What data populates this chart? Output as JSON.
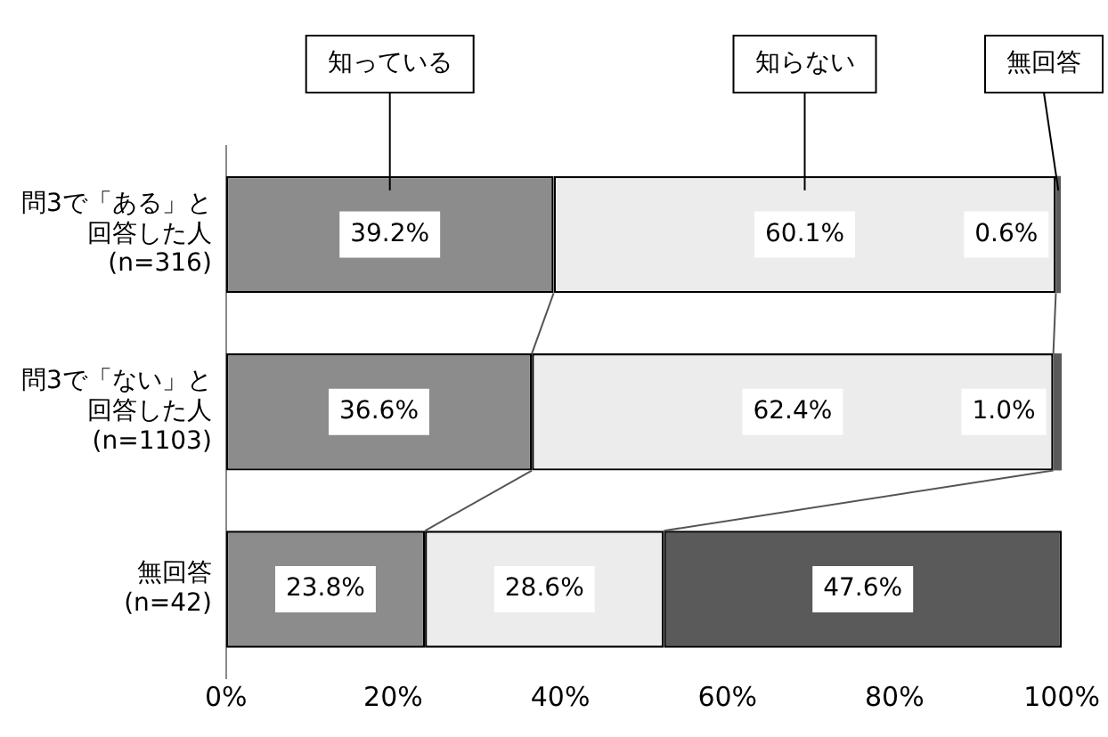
{
  "chart_data": {
    "type": "bar",
    "orientation": "horizontal",
    "stacked": true,
    "categories": [
      "問3で「ある」と回答した人 (n=316)",
      "問3で「ない」と回答した人 (n=1103)",
      "無回答 (n=42)"
    ],
    "series": [
      {
        "name": "知っている",
        "color": "#8c8c8c",
        "values": [
          39.2,
          36.6,
          23.8
        ],
        "value_labels": [
          "39.2%",
          "36.6%",
          "23.8%"
        ]
      },
      {
        "name": "知らない",
        "color": "#ececec",
        "values": [
          60.1,
          62.4,
          28.6
        ],
        "value_labels": [
          "60.1%",
          "62.4%",
          "28.6%"
        ]
      },
      {
        "name": "無回答",
        "color": "#5a5a5a",
        "values": [
          0.6,
          1.0,
          47.6
        ],
        "value_labels": [
          "0.6%",
          "1.0%",
          "47.6%"
        ]
      }
    ],
    "xlim": [
      0,
      100
    ],
    "xticks": [
      {
        "value": 0,
        "label": "0%"
      },
      {
        "value": 20,
        "label": "20%"
      },
      {
        "value": 40,
        "label": "40%"
      },
      {
        "value": 60,
        "label": "60%"
      },
      {
        "value": 80,
        "label": "80%"
      },
      {
        "value": 100,
        "label": "100%"
      }
    ],
    "grid": false
  }
}
